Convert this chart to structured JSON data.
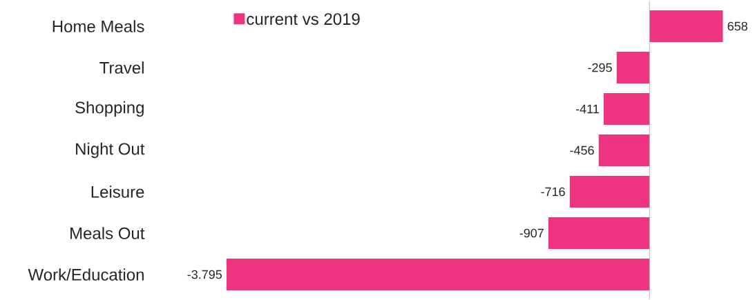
{
  "chart_data": {
    "type": "bar",
    "orientation": "horizontal",
    "categories": [
      "Home Meals",
      "Travel",
      "Shopping",
      "Night Out",
      "Leisure",
      "Meals Out",
      "Work/Education"
    ],
    "series": [
      {
        "name": "current vs 2019",
        "color": "#ee3380",
        "values": [
          658,
          -295,
          -411,
          -456,
          -716,
          -907,
          -3795
        ],
        "value_labels": [
          "658",
          "-295",
          "-411",
          "-456",
          "-716",
          "-907",
          "-3.795"
        ]
      }
    ],
    "tick_labels": "y",
    "legend": "top left"
  }
}
